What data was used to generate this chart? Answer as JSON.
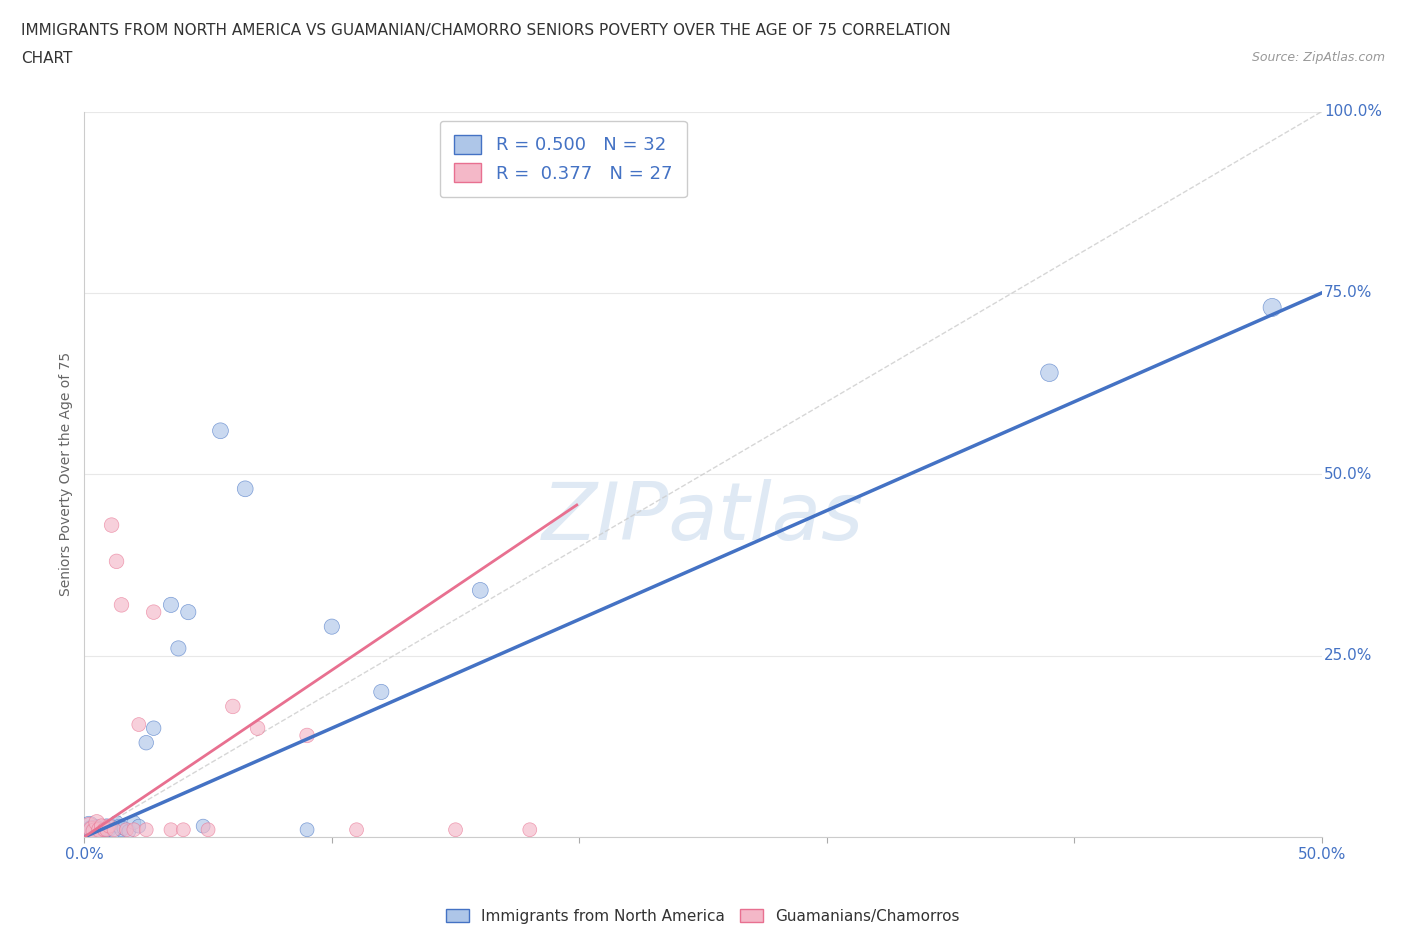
{
  "title_line1": "IMMIGRANTS FROM NORTH AMERICA VS GUAMANIAN/CHAMORRO SENIORS POVERTY OVER THE AGE OF 75 CORRELATION",
  "title_line2": "CHART",
  "source": "Source: ZipAtlas.com",
  "ylabel": "Seniors Poverty Over the Age of 75",
  "xmin": 0.0,
  "xmax": 0.5,
  "ymin": 0.0,
  "ymax": 1.0,
  "blue_R": 0.5,
  "blue_N": 32,
  "pink_R": 0.377,
  "pink_N": 27,
  "blue_color": "#aec6e8",
  "pink_color": "#f4b8c8",
  "blue_line_color": "#4472c4",
  "pink_line_color": "#e87090",
  "diag_color": "#cccccc",
  "legend_R_color": "#4472c4",
  "blue_scatter_x": [
    0.002,
    0.003,
    0.004,
    0.005,
    0.006,
    0.007,
    0.008,
    0.009,
    0.01,
    0.011,
    0.012,
    0.013,
    0.014,
    0.015,
    0.016,
    0.018,
    0.02,
    0.022,
    0.025,
    0.028,
    0.035,
    0.038,
    0.042,
    0.048,
    0.055,
    0.065,
    0.09,
    0.1,
    0.12,
    0.16,
    0.39,
    0.48
  ],
  "blue_scatter_y": [
    0.015,
    0.01,
    0.008,
    0.012,
    0.01,
    0.01,
    0.012,
    0.015,
    0.01,
    0.015,
    0.008,
    0.02,
    0.015,
    0.01,
    0.012,
    0.008,
    0.02,
    0.015,
    0.13,
    0.15,
    0.32,
    0.26,
    0.31,
    0.015,
    0.56,
    0.48,
    0.01,
    0.29,
    0.2,
    0.34,
    0.64,
    0.73
  ],
  "pink_scatter_x": [
    0.002,
    0.003,
    0.004,
    0.005,
    0.006,
    0.007,
    0.008,
    0.009,
    0.01,
    0.011,
    0.012,
    0.013,
    0.015,
    0.017,
    0.02,
    0.022,
    0.025,
    0.028,
    0.035,
    0.04,
    0.05,
    0.06,
    0.07,
    0.09,
    0.11,
    0.15,
    0.18
  ],
  "pink_scatter_y": [
    0.015,
    0.01,
    0.008,
    0.02,
    0.01,
    0.015,
    0.01,
    0.01,
    0.015,
    0.43,
    0.01,
    0.38,
    0.32,
    0.01,
    0.01,
    0.155,
    0.01,
    0.31,
    0.01,
    0.01,
    0.01,
    0.18,
    0.15,
    0.14,
    0.01,
    0.01,
    0.01
  ],
  "blue_scatter_sizes": [
    200,
    180,
    160,
    150,
    140,
    130,
    120,
    110,
    100,
    100,
    100,
    100,
    100,
    100,
    100,
    100,
    100,
    100,
    110,
    110,
    120,
    120,
    120,
    100,
    130,
    130,
    100,
    120,
    120,
    130,
    160,
    170
  ],
  "pink_scatter_sizes": [
    160,
    150,
    140,
    130,
    120,
    110,
    100,
    100,
    100,
    110,
    100,
    110,
    110,
    100,
    100,
    100,
    100,
    110,
    100,
    100,
    100,
    110,
    110,
    110,
    100,
    100,
    100
  ],
  "background_color": "#ffffff",
  "grid_color": "#e8e8e8",
  "watermark_text": "ZIPatlas",
  "watermark_color": "#b8cfe8",
  "watermark_alpha": 0.45,
  "legend_fontsize": 13,
  "title_fontsize": 11,
  "bottom_legend_labels": [
    "Immigrants from North America",
    "Guamanians/Chamorros"
  ]
}
